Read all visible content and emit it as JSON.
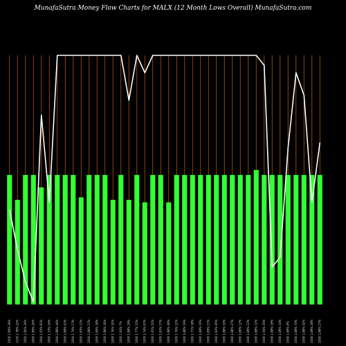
{
  "chart_data": {
    "type": "bar",
    "title": "MunafaSutra  Money Flow  Charts for MALX         (12         Month Lows Overall) MunafaSutra.com",
    "colors": {
      "background": "#000000",
      "bar": "#33ff33",
      "grid": "#b35900",
      "line": "#ffffff"
    },
    "grid": true,
    "categories": [
      "1000 1.99% 29%",
      "1100 1.78% 22%",
      "1000 1.90% 24%",
      "1000 1.89% 20%",
      "1000 1.93% 62%",
      "1000 1.33% 16%",
      "1000 1.88% 44%",
      "1000 1.88% 41%",
      "1000 1.74% 17%",
      "1000 1.83% 21%",
      "1000 1.88% 27%",
      "1000 1.89% 18%",
      "1000 1.88% 26%",
      "1000 1.76% 32%",
      "1000 1.93% 7%",
      "1000 1.88% 29%",
      "1000 1.77% 12%",
      "1000 1.74% 67%",
      "1000 1.91% 22%",
      "1000 1.83% 27%",
      "1000 1.88% 49%",
      "1000 1.76% 12%",
      "1000 1.88% 19%",
      "1000 1.71% 18%",
      "1000 1.89% 10%",
      "1000 1.89% 21%",
      "1000 1.93% 45%",
      "1000 1.88% 10%",
      "1000 1.88% 27%",
      "1000 1.86% 12%",
      "1000 1.89% 12%",
      "1000 1.88% 12%",
      "1000 1.94% 35%",
      "1000 1.88% 18%",
      "1000 1.89% 14%",
      "1000 1.89% 8%",
      "1000 1.88% 74%",
      "1000 1.88% 42%",
      "1000 1.89% 28%",
      "1000 1.88% 27%"
    ],
    "series": [
      {
        "type": "bar",
        "values": [
          52,
          42,
          52,
          52,
          47,
          52,
          52,
          52,
          52,
          43,
          52,
          52,
          52,
          42,
          52,
          42,
          52,
          41,
          52,
          52,
          41,
          52,
          52,
          52,
          52,
          52,
          52,
          52,
          52,
          52,
          52,
          54,
          52,
          52,
          52,
          52,
          52,
          52,
          52,
          52
        ]
      },
      {
        "type": "line",
        "values": [
          38,
          22,
          9,
          1,
          76,
          41,
          100,
          100,
          100,
          100,
          100,
          100,
          100,
          100,
          100,
          82,
          100,
          93,
          100,
          100,
          100,
          100,
          100,
          100,
          100,
          100,
          100,
          100,
          100,
          100,
          100,
          100,
          96,
          15,
          19,
          63,
          93,
          84,
          41,
          65
        ]
      }
    ],
    "ylim": [
      0,
      100
    ]
  }
}
